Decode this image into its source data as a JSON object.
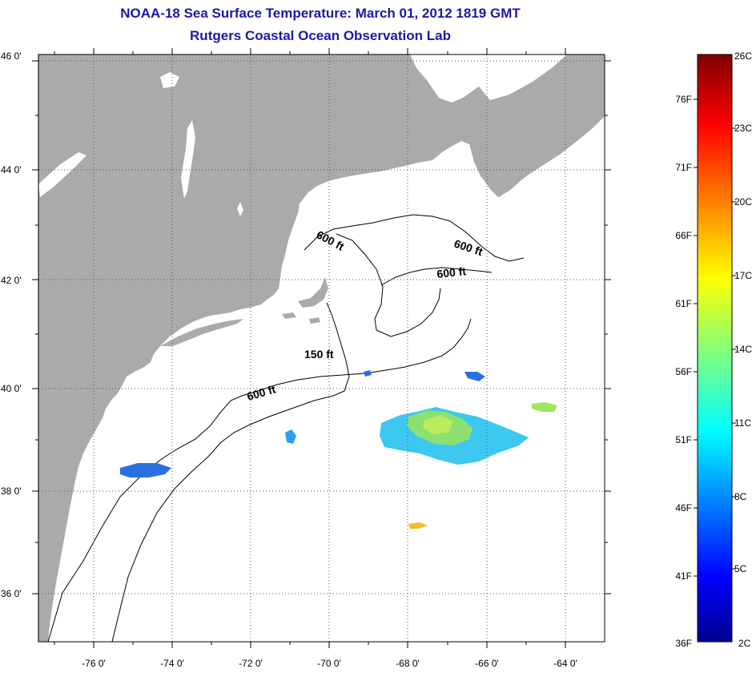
{
  "header": {
    "title": "NOAA-18 Sea Surface Temperature:  March 01, 2012 1819 GMT",
    "subtitle": "Rutgers Coastal Ocean Observation Lab"
  },
  "map": {
    "lat_labels": [
      "46 0'",
      "44 0'",
      "42 0'",
      "40 0'",
      "38 0'",
      "36 0'"
    ],
    "lon_labels": [
      "-76 0'",
      "-74 0'",
      "-72 0'",
      "-70 0'",
      "-68 0'",
      "-66 0'",
      "-64 0'"
    ],
    "contour_labels": [
      "600 ft",
      "600 ft",
      "600 ft",
      "150 ft",
      "600 ft"
    ],
    "colors": {
      "land": "#aaaaaa",
      "ocean": "#ffffff",
      "grid": "#555555"
    }
  },
  "colorbar": {
    "f_labels": [
      "76F",
      "71F",
      "66F",
      "61F",
      "56F",
      "51F",
      "46F",
      "41F",
      "36F"
    ],
    "c_labels": [
      "26C",
      "23C",
      "20C",
      "17C",
      "14C",
      "11C",
      "8C",
      "5C",
      "2C"
    ],
    "range_c": [
      2,
      26
    ]
  }
}
